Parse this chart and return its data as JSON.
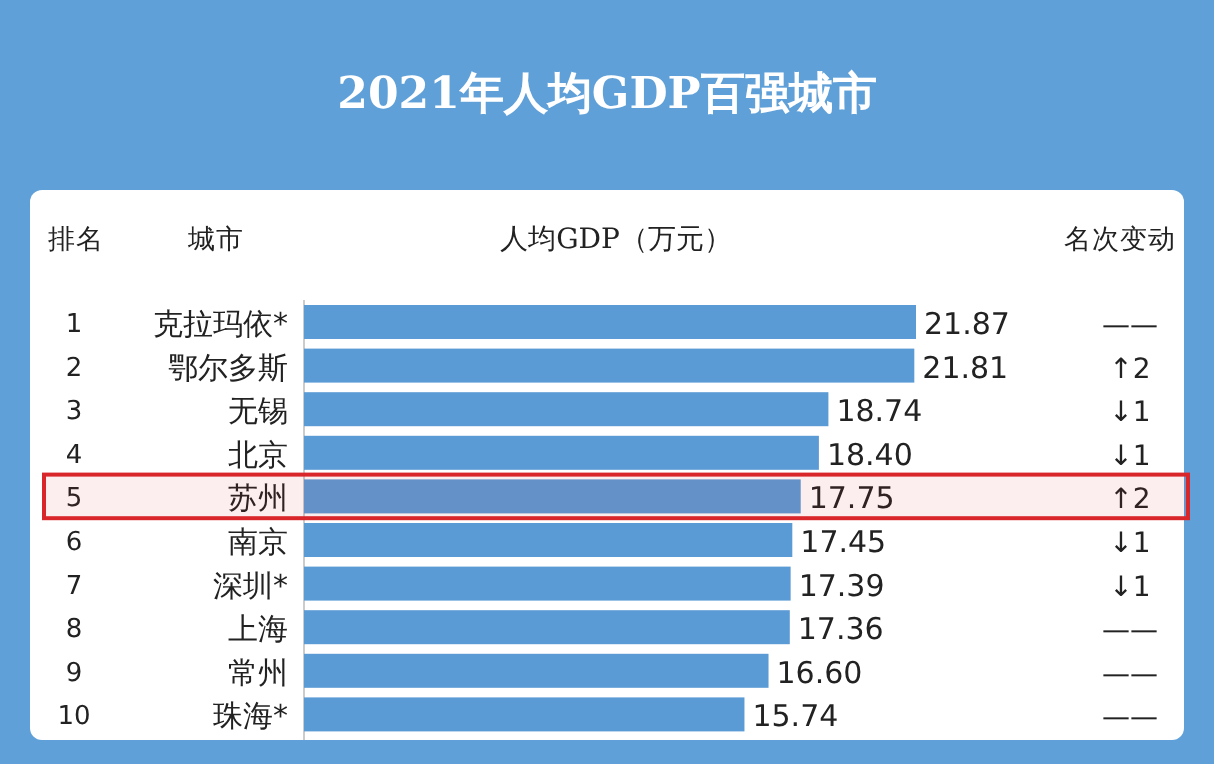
{
  "chart_data": {
    "type": "bar",
    "orientation": "horizontal",
    "title": "2021年人均GDP百强城市",
    "xlabel": "人均GDP（万元）",
    "categories": [
      "克拉玛依*",
      "鄂尔多斯",
      "无锡",
      "北京",
      "苏州",
      "南京",
      "深圳*",
      "上海",
      "常州",
      "珠海*"
    ],
    "values": [
      21.87,
      21.81,
      18.74,
      18.4,
      17.75,
      17.45,
      17.39,
      17.36,
      16.6,
      15.74
    ],
    "value_labels": [
      "21.87",
      "21.81",
      "18.74",
      "18.40",
      "17.75",
      "17.45",
      "17.39",
      "17.36",
      "16.60",
      "15.74"
    ],
    "color": "#5b9bd5",
    "bands": [
      {
        "axis": "y",
        "from": "苏州",
        "to": "苏州",
        "color": "#d9262b"
      }
    ],
    "annotations": [
      "排名",
      "城市",
      "名次变动",
      "1",
      "2",
      "3",
      "4",
      "5",
      "6",
      "7",
      "8",
      "9",
      "10",
      "——",
      "↑2",
      "↓1",
      "↓1",
      "↑2",
      "↓1",
      "↓1",
      "——",
      "——",
      "——"
    ]
  }
}
